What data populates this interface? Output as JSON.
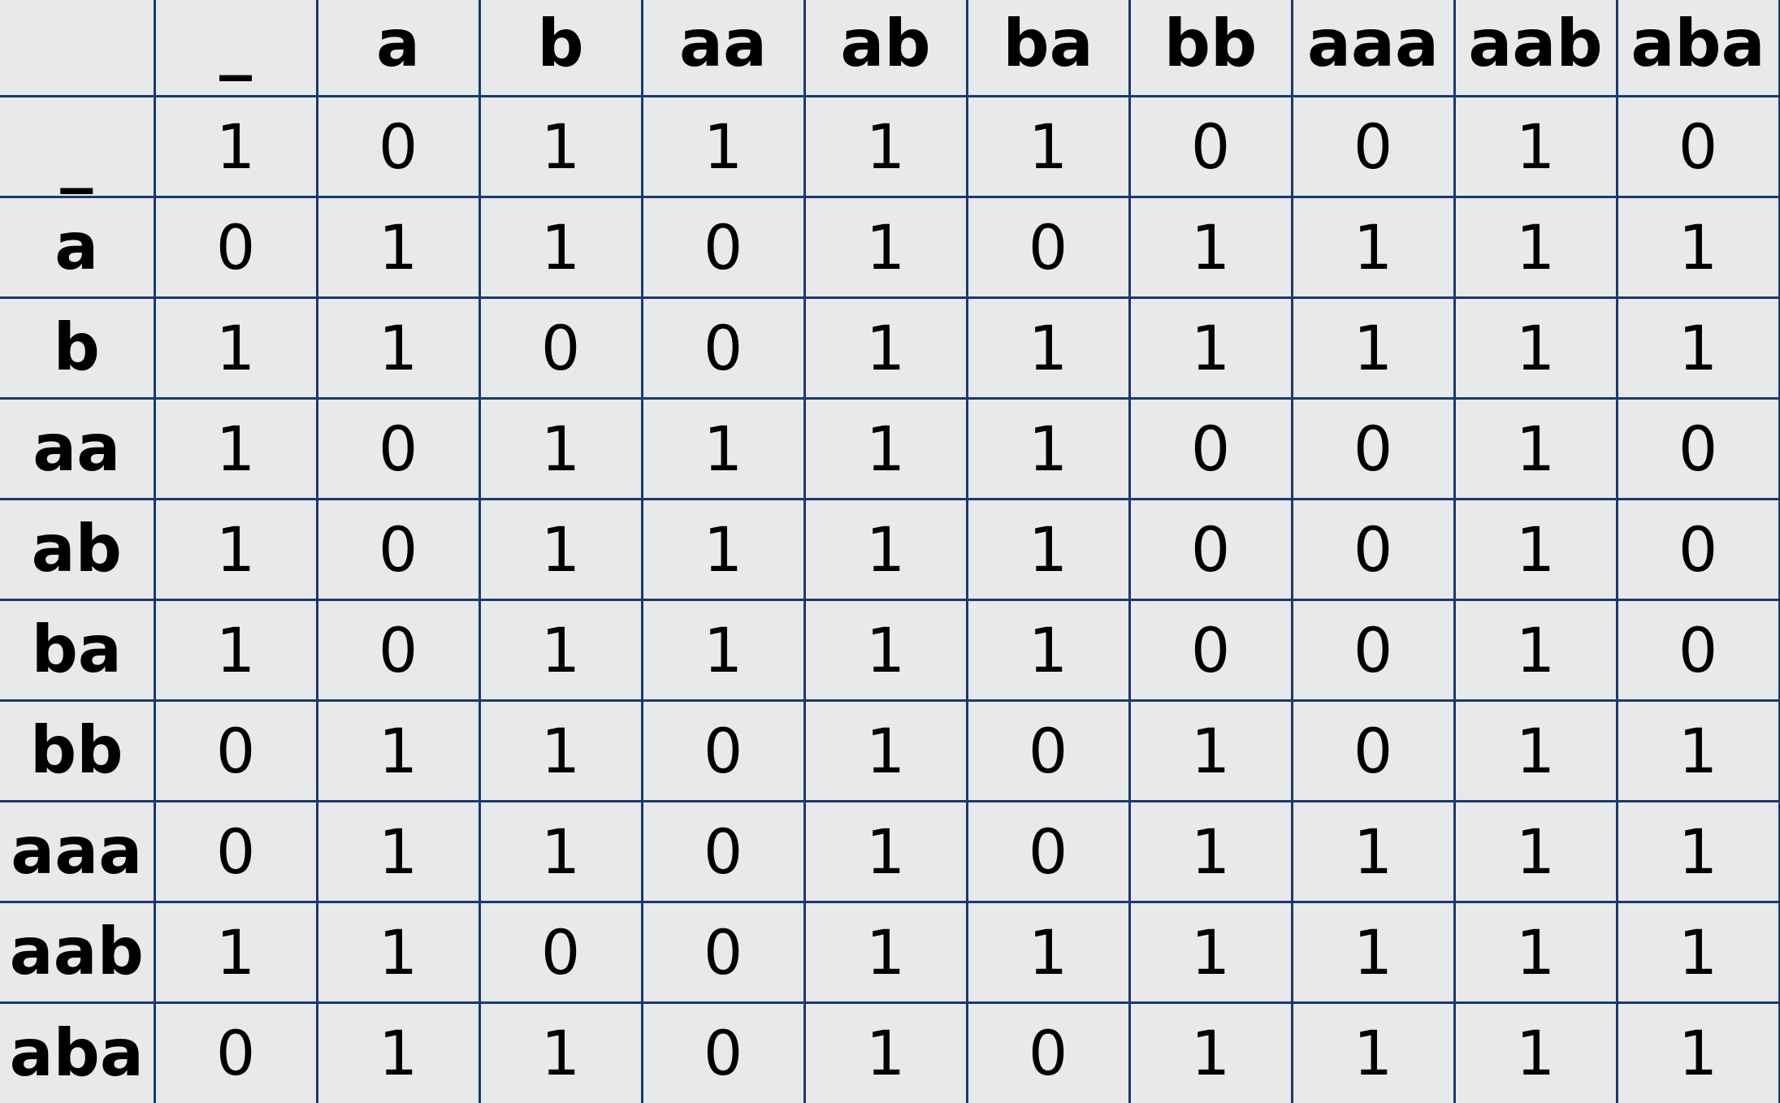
{
  "table": {
    "corner": "",
    "columns": [
      "_",
      "a",
      "b",
      "aa",
      "ab",
      "ba",
      "bb",
      "aaa",
      "aab",
      "aba"
    ],
    "rows": [
      {
        "label": "_",
        "cells": [
          "1",
          "0",
          "1",
          "1",
          "1",
          "1",
          "0",
          "0",
          "1",
          "0"
        ]
      },
      {
        "label": "a",
        "cells": [
          "0",
          "1",
          "1",
          "0",
          "1",
          "0",
          "1",
          "1",
          "1",
          "1"
        ]
      },
      {
        "label": "b",
        "cells": [
          "1",
          "1",
          "0",
          "0",
          "1",
          "1",
          "1",
          "1",
          "1",
          "1"
        ]
      },
      {
        "label": "aa",
        "cells": [
          "1",
          "0",
          "1",
          "1",
          "1",
          "1",
          "0",
          "0",
          "1",
          "0"
        ]
      },
      {
        "label": "ab",
        "cells": [
          "1",
          "0",
          "1",
          "1",
          "1",
          "1",
          "0",
          "0",
          "1",
          "0"
        ]
      },
      {
        "label": "ba",
        "cells": [
          "1",
          "0",
          "1",
          "1",
          "1",
          "1",
          "0",
          "0",
          "1",
          "0"
        ]
      },
      {
        "label": "bb",
        "cells": [
          "0",
          "1",
          "1",
          "0",
          "1",
          "0",
          "1",
          "0",
          "1",
          "1"
        ]
      },
      {
        "label": "aaa",
        "cells": [
          "0",
          "1",
          "1",
          "0",
          "1",
          "0",
          "1",
          "1",
          "1",
          "1"
        ]
      },
      {
        "label": "aab",
        "cells": [
          "1",
          "1",
          "0",
          "0",
          "1",
          "1",
          "1",
          "1",
          "1",
          "1"
        ]
      },
      {
        "label": "aba",
        "cells": [
          "0",
          "1",
          "1",
          "0",
          "1",
          "0",
          "1",
          "1",
          "1",
          "1"
        ]
      }
    ]
  }
}
